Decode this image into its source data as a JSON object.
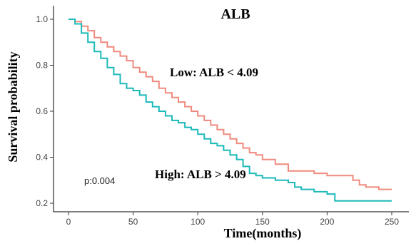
{
  "chart_data": {
    "type": "line",
    "title": "ALB",
    "xlabel": "Time(months)",
    "ylabel": "Survival probability",
    "xlim": [
      0,
      250
    ],
    "ylim": [
      0.2,
      1.0
    ],
    "x_ticks": [
      "0",
      "50",
      "100",
      "150",
      "200",
      "250"
    ],
    "y_ticks": [
      "0.2",
      "0.4",
      "0.6",
      "0.8",
      "1.0"
    ],
    "grid": false,
    "legend": "none",
    "annotations": {
      "low": "Low: ALB < 4.09",
      "high": "High: ALB > 4.09",
      "pvalue": "p:0.004"
    },
    "series": [
      {
        "name": "Low: ALB < 4.09",
        "color": "#F08A7E",
        "x": [
          0,
          5,
          10,
          15,
          20,
          25,
          30,
          35,
          40,
          45,
          50,
          55,
          60,
          65,
          70,
          75,
          80,
          85,
          90,
          95,
          100,
          105,
          110,
          115,
          120,
          125,
          130,
          135,
          140,
          145,
          150,
          160,
          170,
          180,
          190,
          200,
          210,
          220,
          225,
          230,
          235,
          240,
          245,
          250
        ],
        "y": [
          1.0,
          0.99,
          0.97,
          0.95,
          0.92,
          0.9,
          0.88,
          0.86,
          0.84,
          0.82,
          0.79,
          0.77,
          0.75,
          0.73,
          0.7,
          0.68,
          0.66,
          0.64,
          0.62,
          0.6,
          0.58,
          0.56,
          0.54,
          0.52,
          0.5,
          0.48,
          0.46,
          0.44,
          0.42,
          0.41,
          0.39,
          0.37,
          0.34,
          0.34,
          0.33,
          0.32,
          0.32,
          0.3,
          0.28,
          0.27,
          0.27,
          0.26,
          0.26,
          0.26
        ]
      },
      {
        "name": "High: ALB > 4.09",
        "color": "#1DB9B9",
        "x": [
          0,
          5,
          10,
          15,
          20,
          25,
          30,
          35,
          40,
          45,
          50,
          55,
          60,
          65,
          70,
          75,
          80,
          85,
          90,
          95,
          100,
          105,
          110,
          115,
          120,
          125,
          130,
          135,
          140,
          145,
          150,
          160,
          170,
          175,
          180,
          190,
          200,
          205,
          206,
          210,
          220,
          230,
          240,
          250
        ],
        "y": [
          1.0,
          0.98,
          0.94,
          0.9,
          0.86,
          0.83,
          0.79,
          0.76,
          0.72,
          0.7,
          0.69,
          0.67,
          0.64,
          0.62,
          0.6,
          0.58,
          0.56,
          0.55,
          0.53,
          0.52,
          0.5,
          0.48,
          0.46,
          0.45,
          0.43,
          0.41,
          0.39,
          0.36,
          0.33,
          0.32,
          0.31,
          0.3,
          0.29,
          0.27,
          0.26,
          0.25,
          0.24,
          0.24,
          0.21,
          0.21,
          0.21,
          0.21,
          0.21,
          0.21
        ]
      }
    ]
  }
}
